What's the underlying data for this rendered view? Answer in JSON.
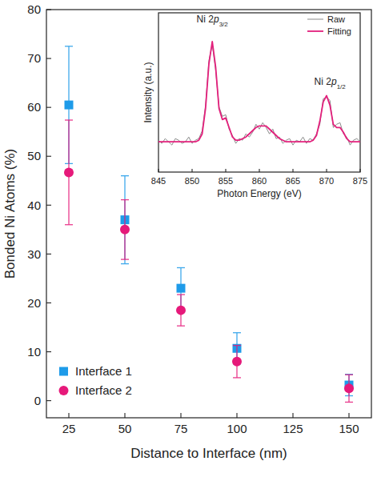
{
  "chart_data": [
    {
      "type": "scatter",
      "xlabel": "Distance to Interface (nm)",
      "ylabel": "Bonded Ni Atoms (%)",
      "x": [
        25,
        50,
        75,
        100,
        150
      ],
      "xlim": [
        15,
        160
      ],
      "xticks": [
        25,
        50,
        75,
        100,
        125,
        150
      ],
      "ylim": [
        -3.5,
        80
      ],
      "yticks": [
        0,
        10,
        20,
        30,
        40,
        50,
        60,
        70,
        80
      ],
      "grid": false,
      "legend": "lower left",
      "series": [
        {
          "name": "Interface 1",
          "color": "#1e9be9",
          "marker": "square",
          "values": [
            60.5,
            37,
            23,
            10.7,
            3.2
          ],
          "errors": [
            12,
            9,
            4.2,
            3.2,
            2.2
          ]
        },
        {
          "name": "Interface 2",
          "color": "#e6197a",
          "marker": "circle",
          "values": [
            46.7,
            35,
            18.5,
            8,
            2.5
          ],
          "errors": [
            10.7,
            6.1,
            3.2,
            3.3,
            2.8
          ]
        }
      ]
    },
    {
      "type": "line",
      "xlabel": "Photon Energy (eV)",
      "ylabel": "Intensity (a.u.)",
      "x": [
        845,
        845.5,
        846,
        846.5,
        847,
        847.5,
        848,
        848.5,
        849,
        849.5,
        850,
        850.5,
        851,
        851.5,
        852,
        852.5,
        853,
        853.5,
        854,
        854.5,
        855,
        855.5,
        856,
        856.5,
        857,
        857.5,
        858,
        858.5,
        859,
        859.5,
        860,
        860.5,
        861,
        861.5,
        862,
        862.5,
        863,
        863.5,
        864,
        864.5,
        865,
        865.5,
        866,
        866.5,
        867,
        867.5,
        868,
        868.5,
        869,
        869.5,
        870,
        870.5,
        871,
        871.5,
        872,
        872.5,
        873,
        873.5,
        874,
        874.5,
        875
      ],
      "xlim": [
        845,
        875
      ],
      "xticks": [
        845,
        850,
        855,
        860,
        865,
        870,
        875
      ],
      "ylim": [
        0,
        1
      ],
      "tick_labels": "x",
      "grid": false,
      "legend": "upper right",
      "annotations": [
        {
          "text": "Ni 2p3/2",
          "x": 853,
          "y": 0.94
        },
        {
          "text": "Ni 2p1/2",
          "x": 870.5,
          "y": 0.55
        }
      ],
      "series": [
        {
          "name": "Raw",
          "color": "#8a8a8a",
          "values": [
            0.2,
            0.18,
            0.21,
            0.19,
            0.17,
            0.21,
            0.2,
            0.18,
            0.19,
            0.22,
            0.18,
            0.2,
            0.21,
            0.26,
            0.42,
            0.7,
            0.8,
            0.64,
            0.41,
            0.35,
            0.36,
            0.27,
            0.23,
            0.18,
            0.21,
            0.2,
            0.24,
            0.22,
            0.25,
            0.3,
            0.27,
            0.31,
            0.28,
            0.24,
            0.27,
            0.21,
            0.22,
            0.18,
            0.2,
            0.21,
            0.17,
            0.2,
            0.19,
            0.22,
            0.18,
            0.21,
            0.2,
            0.24,
            0.3,
            0.46,
            0.47,
            0.45,
            0.28,
            0.3,
            0.31,
            0.24,
            0.22,
            0.17,
            0.2,
            0.21,
            0.19
          ]
        },
        {
          "name": "Fitting",
          "color": "#e3207c",
          "values": [
            0.19,
            0.19,
            0.19,
            0.19,
            0.19,
            0.19,
            0.19,
            0.19,
            0.19,
            0.19,
            0.19,
            0.19,
            0.2,
            0.24,
            0.4,
            0.68,
            0.82,
            0.66,
            0.4,
            0.33,
            0.34,
            0.28,
            0.22,
            0.2,
            0.2,
            0.21,
            0.22,
            0.24,
            0.26,
            0.28,
            0.29,
            0.29,
            0.29,
            0.27,
            0.25,
            0.23,
            0.21,
            0.2,
            0.19,
            0.19,
            0.19,
            0.19,
            0.19,
            0.19,
            0.19,
            0.19,
            0.2,
            0.23,
            0.32,
            0.44,
            0.48,
            0.42,
            0.3,
            0.28,
            0.28,
            0.25,
            0.21,
            0.19,
            0.19,
            0.19,
            0.19
          ]
        }
      ]
    }
  ]
}
